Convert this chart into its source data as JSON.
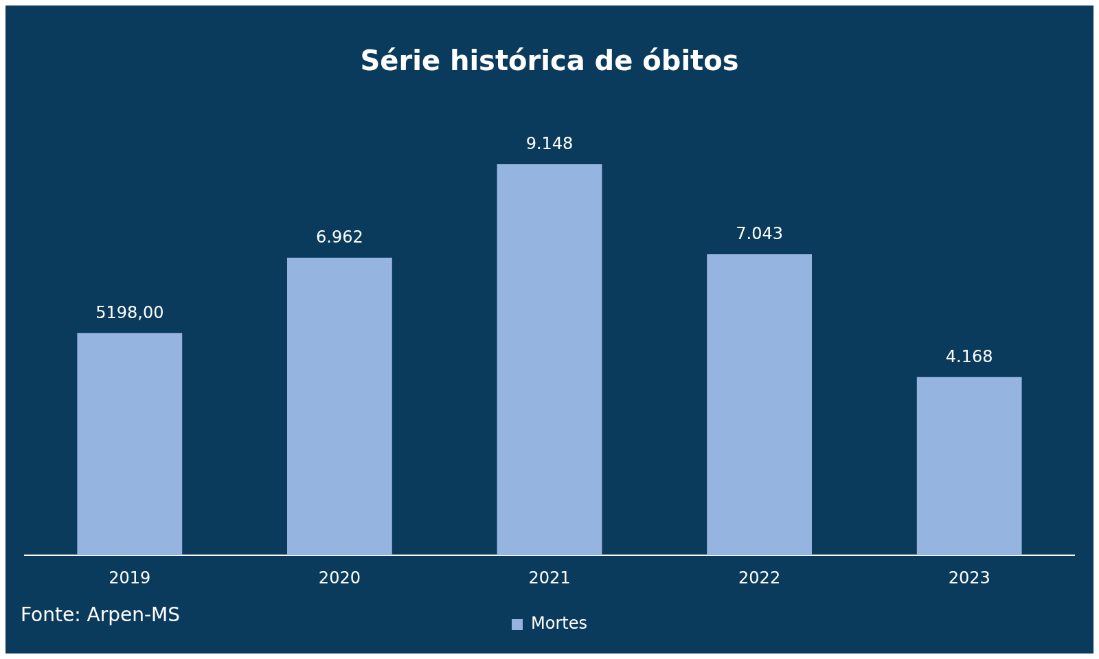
{
  "chart_data": {
    "type": "bar",
    "title": "Série histórica de óbitos",
    "categories": [
      "2019",
      "2020",
      "2021",
      "2022",
      "2023"
    ],
    "series": [
      {
        "name": "Mortes",
        "color": "#95b5e0",
        "values": [
          5198,
          6962,
          9148,
          7043,
          4168
        ],
        "value_labels": [
          "5198,00",
          "6.962",
          "9.148",
          "7.043",
          "4.168"
        ]
      }
    ],
    "legend": "bottom",
    "grid": false,
    "annotations": [
      "Fonte: Arpen-MS"
    ]
  }
}
